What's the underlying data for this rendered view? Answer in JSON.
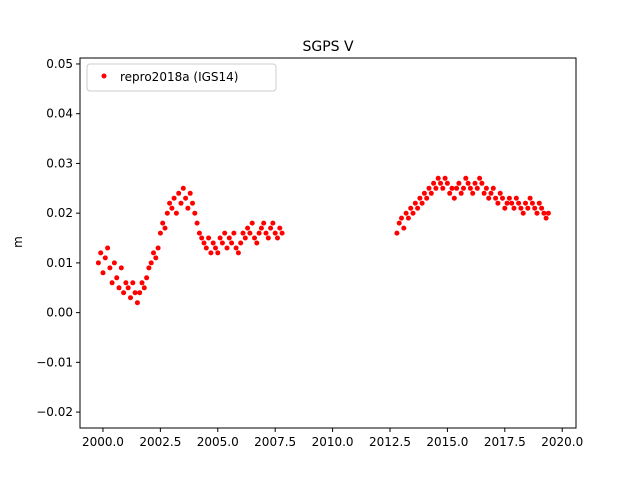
{
  "chart_data": {
    "type": "scatter",
    "title": "SGPS V",
    "xlabel": "",
    "ylabel": "m",
    "xlim": [
      1999.0,
      2020.6
    ],
    "ylim": [
      -0.0232,
      0.0512
    ],
    "x_ticks": [
      2000.0,
      2002.5,
      2005.0,
      2007.5,
      2010.0,
      2012.5,
      2015.0,
      2017.5,
      2020.0
    ],
    "y_ticks": [
      -0.02,
      -0.01,
      0.0,
      0.01,
      0.02,
      0.03,
      0.04,
      0.05
    ],
    "x_tick_labels": [
      "2000.0",
      "2002.5",
      "2005.0",
      "2007.5",
      "2010.0",
      "2012.5",
      "2015.0",
      "2017.5",
      "2020.0"
    ],
    "y_tick_labels": [
      "−0.02",
      "−0.01",
      "0.00",
      "0.01",
      "0.02",
      "0.03",
      "0.04",
      "0.05"
    ],
    "grid": false,
    "legend_position": "upper-left",
    "series": [
      {
        "name": "repro2018a (IGS14)",
        "color": "#ff0000",
        "marker": "circle",
        "note_segments": "two observation spans: ~1999.8–2007.8 and ~2012.8–2019.4",
        "x": [
          1999.8,
          1999.9,
          2000.0,
          2000.1,
          2000.2,
          2000.3,
          2000.4,
          2000.5,
          2000.6,
          2000.7,
          2000.8,
          2000.9,
          2001.0,
          2001.1,
          2001.2,
          2001.3,
          2001.4,
          2001.5,
          2001.6,
          2001.7,
          2001.8,
          2001.9,
          2002.0,
          2002.1,
          2002.2,
          2002.3,
          2002.4,
          2002.5,
          2002.6,
          2002.7,
          2002.8,
          2002.9,
          2003.0,
          2003.1,
          2003.2,
          2003.3,
          2003.4,
          2003.5,
          2003.6,
          2003.7,
          2003.8,
          2003.9,
          2004.0,
          2004.1,
          2004.2,
          2004.3,
          2004.4,
          2004.5,
          2004.6,
          2004.7,
          2004.8,
          2004.9,
          2005.0,
          2005.1,
          2005.2,
          2005.3,
          2005.4,
          2005.5,
          2005.6,
          2005.7,
          2005.8,
          2005.9,
          2006.0,
          2006.1,
          2006.2,
          2006.3,
          2006.4,
          2006.5,
          2006.6,
          2006.7,
          2006.8,
          2006.9,
          2007.0,
          2007.1,
          2007.2,
          2007.3,
          2007.4,
          2007.5,
          2007.6,
          2007.7,
          2007.8,
          2012.8,
          2012.9,
          2013.0,
          2013.1,
          2013.2,
          2013.3,
          2013.4,
          2013.5,
          2013.6,
          2013.7,
          2013.8,
          2013.9,
          2014.0,
          2014.1,
          2014.2,
          2014.3,
          2014.4,
          2014.5,
          2014.6,
          2014.7,
          2014.8,
          2014.9,
          2015.0,
          2015.1,
          2015.2,
          2015.3,
          2015.4,
          2015.5,
          2015.6,
          2015.7,
          2015.8,
          2015.9,
          2016.0,
          2016.1,
          2016.2,
          2016.3,
          2016.4,
          2016.5,
          2016.6,
          2016.7,
          2016.8,
          2016.9,
          2017.0,
          2017.1,
          2017.2,
          2017.3,
          2017.4,
          2017.5,
          2017.6,
          2017.7,
          2017.8,
          2017.9,
          2018.0,
          2018.1,
          2018.2,
          2018.3,
          2018.4,
          2018.5,
          2018.6,
          2018.7,
          2018.8,
          2018.9,
          2019.0,
          2019.1,
          2019.2,
          2019.3,
          2019.4
        ],
        "y": [
          0.01,
          0.012,
          0.008,
          0.011,
          0.013,
          0.009,
          0.006,
          0.01,
          0.007,
          0.005,
          0.009,
          0.004,
          0.006,
          0.005,
          0.003,
          0.006,
          0.004,
          0.002,
          0.004,
          0.006,
          0.005,
          0.007,
          0.009,
          0.01,
          0.012,
          0.011,
          0.013,
          0.016,
          0.018,
          0.017,
          0.02,
          0.022,
          0.021,
          0.023,
          0.02,
          0.024,
          0.022,
          0.025,
          0.023,
          0.021,
          0.024,
          0.022,
          0.02,
          0.018,
          0.016,
          0.015,
          0.014,
          0.013,
          0.015,
          0.012,
          0.014,
          0.013,
          0.012,
          0.015,
          0.014,
          0.016,
          0.013,
          0.015,
          0.014,
          0.016,
          0.013,
          0.012,
          0.014,
          0.016,
          0.015,
          0.017,
          0.016,
          0.018,
          0.015,
          0.014,
          0.016,
          0.017,
          0.018,
          0.016,
          0.015,
          0.017,
          0.018,
          0.016,
          0.015,
          0.017,
          0.016,
          0.016,
          0.018,
          0.019,
          0.017,
          0.02,
          0.019,
          0.021,
          0.02,
          0.022,
          0.021,
          0.023,
          0.022,
          0.024,
          0.023,
          0.025,
          0.024,
          0.026,
          0.025,
          0.027,
          0.026,
          0.025,
          0.027,
          0.026,
          0.024,
          0.025,
          0.023,
          0.025,
          0.026,
          0.024,
          0.025,
          0.027,
          0.026,
          0.025,
          0.024,
          0.026,
          0.025,
          0.027,
          0.026,
          0.024,
          0.025,
          0.023,
          0.024,
          0.025,
          0.023,
          0.022,
          0.024,
          0.023,
          0.021,
          0.022,
          0.023,
          0.022,
          0.021,
          0.023,
          0.022,
          0.021,
          0.02,
          0.022,
          0.021,
          0.023,
          0.022,
          0.021,
          0.02,
          0.022,
          0.021,
          0.02,
          0.019,
          0.02
        ]
      }
    ]
  }
}
